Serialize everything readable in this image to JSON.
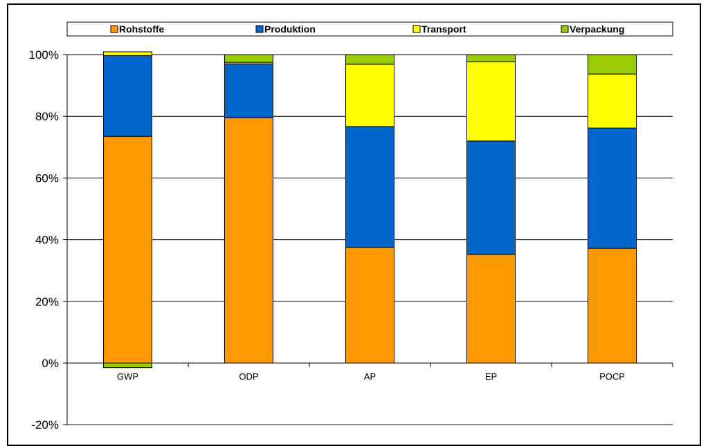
{
  "chart_data": {
    "type": "bar",
    "stacked": true,
    "percent_axis": true,
    "categories": [
      "GWP",
      "ODP",
      "AP",
      "EP",
      "POCP"
    ],
    "series": [
      {
        "name": "Rohstoffe",
        "color": "#FF9900",
        "values": [
          73.5,
          79.5,
          37.5,
          35.2,
          37.2
        ]
      },
      {
        "name": "Produktion",
        "color": "#0066CC",
        "values": [
          26.2,
          17.5,
          39.2,
          36.8,
          39.0
        ]
      },
      {
        "name": "Transport",
        "color": "#FFFF00",
        "values": [
          1.2,
          0.5,
          20.2,
          25.7,
          17.5
        ]
      },
      {
        "name": "Verpackung",
        "color": "#99CC00",
        "values": [
          -1.5,
          2.5,
          3.1,
          2.3,
          6.3
        ]
      }
    ],
    "yticks": [
      "-20%",
      "0%",
      "20%",
      "40%",
      "60%",
      "80%",
      "100%"
    ],
    "ylim": [
      -20,
      100
    ],
    "grid": true,
    "legend_position": "top",
    "title": "",
    "xlabel": "",
    "ylabel": ""
  }
}
